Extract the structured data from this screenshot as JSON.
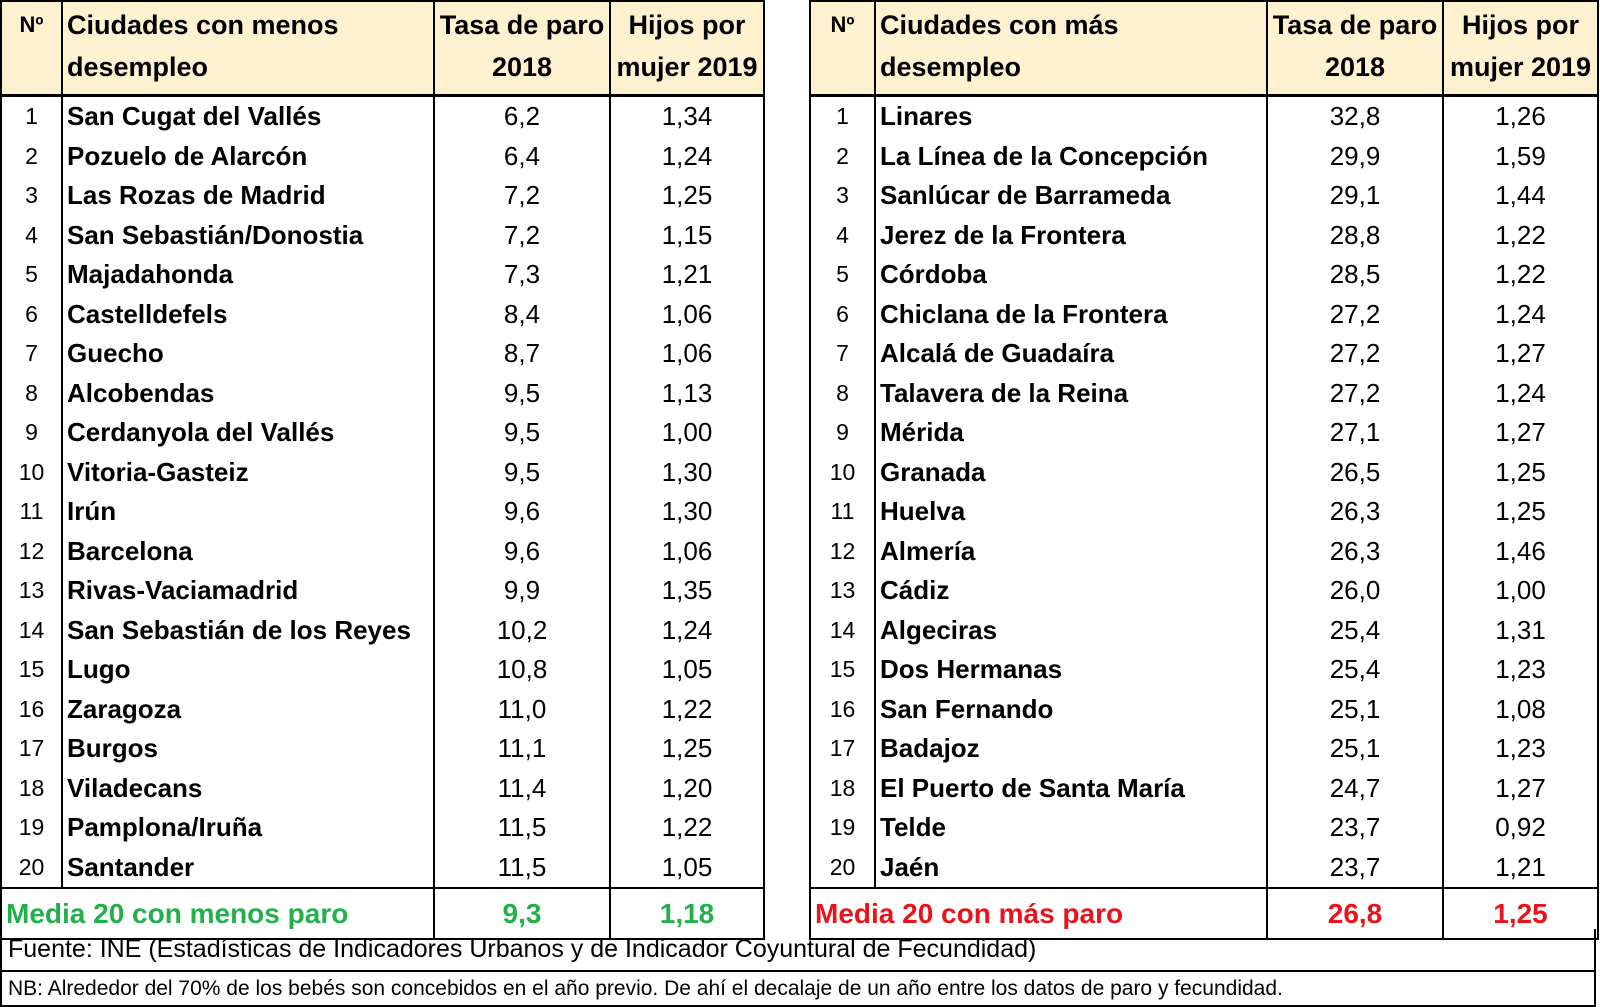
{
  "tables": [
    {
      "headers": [
        "Nº",
        "Ciudades con menos desempleo",
        "Tasa de paro 2018",
        "Hijos por mujer 2019"
      ],
      "rows": [
        [
          "1",
          "San Cugat del Vallés",
          "6,2",
          "1,34"
        ],
        [
          "2",
          "Pozuelo de Alarcón",
          "6,4",
          "1,24"
        ],
        [
          "3",
          "Las Rozas de Madrid",
          "7,2",
          "1,25"
        ],
        [
          "4",
          "San Sebastián/Donostia",
          "7,2",
          "1,15"
        ],
        [
          "5",
          "Majadahonda",
          "7,3",
          "1,21"
        ],
        [
          "6",
          "Castelldefels",
          "8,4",
          "1,06"
        ],
        [
          "7",
          "Guecho",
          "8,7",
          "1,06"
        ],
        [
          "8",
          "Alcobendas",
          "9,5",
          "1,13"
        ],
        [
          "9",
          "Cerdanyola del Vallés",
          "9,5",
          "1,00"
        ],
        [
          "10",
          "Vitoria-Gasteiz",
          "9,5",
          "1,30"
        ],
        [
          "11",
          "Irún",
          "9,6",
          "1,30"
        ],
        [
          "12",
          "Barcelona",
          "9,6",
          "1,06"
        ],
        [
          "13",
          "Rivas-Vaciamadrid",
          "9,9",
          "1,35"
        ],
        [
          "14",
          "San Sebastián de los Reyes",
          "10,2",
          "1,24"
        ],
        [
          "15",
          "Lugo",
          "10,8",
          "1,05"
        ],
        [
          "16",
          "Zaragoza",
          "11,0",
          "1,22"
        ],
        [
          "17",
          "Burgos",
          "11,1",
          "1,25"
        ],
        [
          "18",
          "Viladecans",
          "11,4",
          "1,20"
        ],
        [
          "19",
          "Pamplona/Iruña",
          "11,5",
          "1,22"
        ],
        [
          "20",
          "Santander",
          "11,5",
          "1,05"
        ]
      ],
      "footer": [
        "Media 20 con menos paro",
        "9,3",
        "1,18"
      ]
    },
    {
      "headers": [
        "Nº",
        "Ciudades con más desempleo",
        "Tasa de paro 2018",
        "Hijos por mujer 2019"
      ],
      "rows": [
        [
          "1",
          "Linares",
          "32,8",
          "1,26"
        ],
        [
          "2",
          "La Línea de la Concepción",
          "29,9",
          "1,59"
        ],
        [
          "3",
          "Sanlúcar de Barrameda",
          "29,1",
          "1,44"
        ],
        [
          "4",
          "Jerez de la Frontera",
          "28,8",
          "1,22"
        ],
        [
          "5",
          "Córdoba",
          "28,5",
          "1,22"
        ],
        [
          "6",
          "Chiclana de la Frontera",
          "27,2",
          "1,24"
        ],
        [
          "7",
          "Alcalá de Guadaíra",
          "27,2",
          "1,27"
        ],
        [
          "8",
          "Talavera de la Reina",
          "27,2",
          "1,24"
        ],
        [
          "9",
          "Mérida",
          "27,1",
          "1,27"
        ],
        [
          "10",
          "Granada",
          "26,5",
          "1,25"
        ],
        [
          "11",
          "Huelva",
          "26,3",
          "1,25"
        ],
        [
          "12",
          "Almería",
          "26,3",
          "1,46"
        ],
        [
          "13",
          "Cádiz",
          "26,0",
          "1,00"
        ],
        [
          "14",
          "Algeciras",
          "25,4",
          "1,31"
        ],
        [
          "15",
          "Dos Hermanas",
          "25,4",
          "1,23"
        ],
        [
          "16",
          "San Fernando",
          "25,1",
          "1,08"
        ],
        [
          "17",
          "Badajoz",
          "25,1",
          "1,23"
        ],
        [
          "18",
          "El Puerto de Santa María",
          "24,7",
          "1,27"
        ],
        [
          "19",
          "Telde",
          "23,7",
          "0,92"
        ],
        [
          "20",
          "Jaén",
          "23,7",
          "1,21"
        ]
      ],
      "footer": [
        "Media 20 con más paro",
        "26,8",
        "1,25"
      ]
    }
  ],
  "source": "Fuente: INE (Estadísticas de Indicadores Urbanos y de Indicador Coyuntural de Fecundidad)",
  "note": "NB: Alrededor del 70% de los bebés son concebidos en el año previo. De ahí el decalaje de un año entre los datos de paro y fecundidad."
}
